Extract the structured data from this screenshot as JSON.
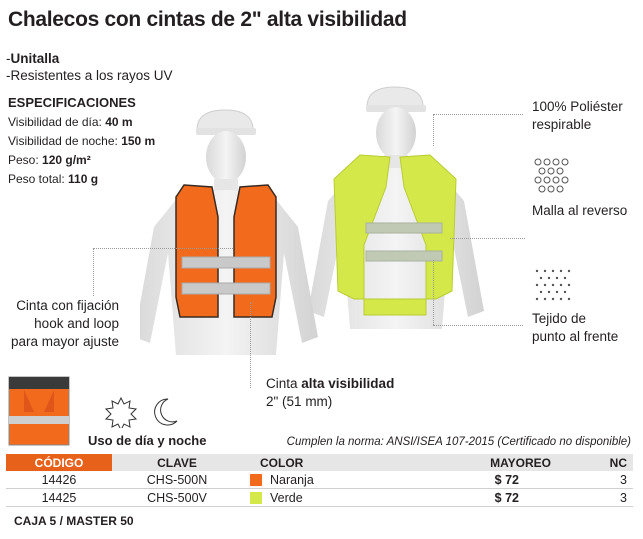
{
  "header": {
    "title": "Chalecos con cintas de 2\" alta visibilidad"
  },
  "features": [
    "Unitalla",
    "Resistentes a los rayos UV"
  ],
  "specs": {
    "heading": "ESPECIFICACIONES",
    "items": [
      {
        "label": "Visibilidad de día: ",
        "value": "40 m"
      },
      {
        "label": "Visibilidad de noche: ",
        "value": "150 m"
      },
      {
        "label": "Peso: ",
        "value": "120 g/m²"
      },
      {
        "label": "Peso total: ",
        "value": "110 g"
      }
    ]
  },
  "callouts": {
    "fabric": [
      "100% Poliéster",
      "respirable"
    ],
    "mesh": "Malla al reverso",
    "knit": [
      "Tejido de",
      "punto al frente"
    ],
    "hook": [
      "Cinta con fijación",
      "hook and loop",
      "para mayor ajuste"
    ],
    "tape_prefix": "Cinta ",
    "tape_bold": "alta visibilidad",
    "tape_size": "2\" (51 mm)"
  },
  "usage": {
    "label": "Uso de día y noche"
  },
  "norm": "Cumplen la norma: ANSI/ISEA 107-2015 (Certificado no disponible)",
  "table": {
    "headers": {
      "code": "CÓDIGO",
      "clave": "CLAVE",
      "color": "COLOR",
      "mayoreo": "MAYOREO",
      "nc": "NC"
    },
    "rows": [
      {
        "code": "14426",
        "clave": "CHS-500N",
        "color": "Naranja",
        "swatch": "#f26b1d",
        "price": "$ 72",
        "nc": "3"
      },
      {
        "code": "14425",
        "clave": "CHS-500V",
        "color": "Verde",
        "swatch": "#d4e84a",
        "price": "$ 72",
        "nc": "3"
      }
    ]
  },
  "footer": {
    "caja": "CAJA 5 / MASTER 50"
  },
  "colors": {
    "orange": "#f26b1d",
    "green": "#d4e84a",
    "accent": "#e8611a"
  }
}
